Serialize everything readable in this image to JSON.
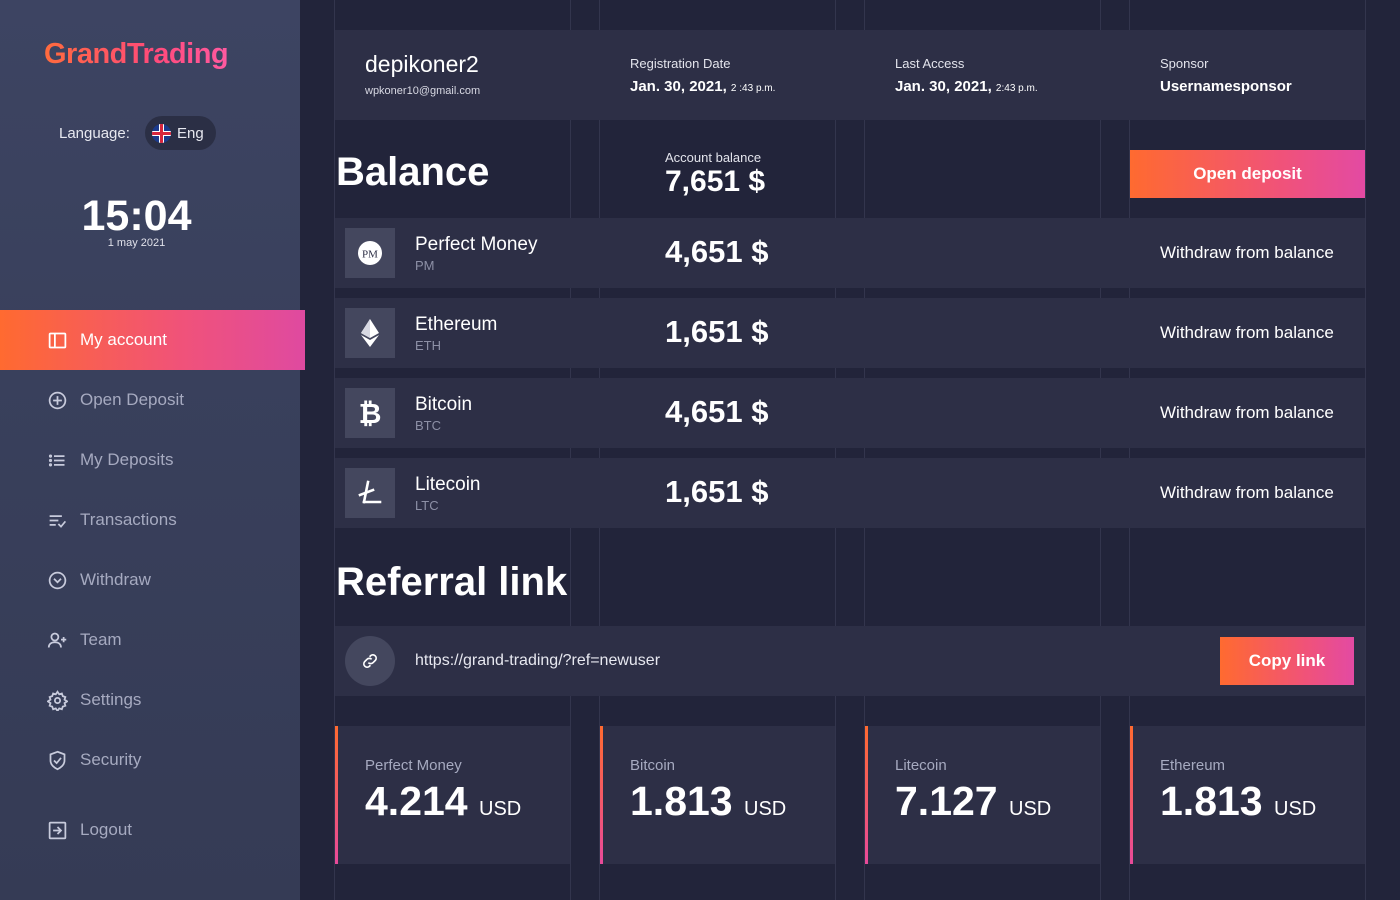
{
  "brand": "GrandTrading",
  "language": {
    "label": "Language:",
    "value": "Eng"
  },
  "clock": {
    "time": "15:04",
    "date": "1 may 2021"
  },
  "nav": [
    {
      "label": "My account",
      "icon": "layout-icon",
      "active": true
    },
    {
      "label": "Open Deposit",
      "icon": "plus-circle-icon"
    },
    {
      "label": "My Deposits",
      "icon": "list-icon"
    },
    {
      "label": "Transactions",
      "icon": "transactions-icon"
    },
    {
      "label": "Withdraw",
      "icon": "chevron-circle-icon"
    },
    {
      "label": "Team",
      "icon": "user-plus-icon"
    },
    {
      "label": "Settings",
      "icon": "gear-icon"
    },
    {
      "label": "Security",
      "icon": "shield-icon"
    },
    {
      "label": "Logout",
      "icon": "logout-icon"
    }
  ],
  "user": {
    "name": "depikoner2",
    "email": "wpkoner10@gmail.com",
    "registration_label": "Registration Date",
    "registration_date": "Jan. 30, 2021,",
    "registration_time": "2 :43 p.m.",
    "last_access_label": "Last Access",
    "last_access_date": "Jan. 30, 2021,",
    "last_access_time": "2:43 p.m.",
    "sponsor_label": "Sponsor",
    "sponsor": "Usernamesponsor"
  },
  "balance": {
    "title": "Balance",
    "account_label": "Account balance",
    "account_value": "7,651 $",
    "open_deposit_label": "Open deposit",
    "withdraw_label": "Withdraw from balance",
    "coins": [
      {
        "name": "Perfect Money",
        "code": "PM",
        "amount": "4,651 $",
        "icon": "perfect-money-icon"
      },
      {
        "name": "Ethereum",
        "code": "ETH",
        "amount": "1,651 $",
        "icon": "ethereum-icon"
      },
      {
        "name": "Bitcoin",
        "code": "BTC",
        "amount": "4,651 $",
        "icon": "bitcoin-icon"
      },
      {
        "name": "Litecoin",
        "code": "LTC",
        "amount": "1,651 $",
        "icon": "litecoin-icon"
      }
    ]
  },
  "referral": {
    "title": "Referral link",
    "url": "https://grand-trading/?ref=newuser",
    "copy_label": "Copy link"
  },
  "stats": [
    {
      "label": "Perfect Money",
      "value": "4.214",
      "unit": "USD"
    },
    {
      "label": "Bitcoin",
      "value": "1.813",
      "unit": "USD"
    },
    {
      "label": "Litecoin",
      "value": "7.127",
      "unit": "USD"
    },
    {
      "label": "Ethereum",
      "value": "1.813",
      "unit": "USD"
    }
  ],
  "colors": {
    "accent_start": "#ff6a30",
    "accent_end": "#e34aa3",
    "bg": "#22243a",
    "card": "#2d2f46"
  }
}
